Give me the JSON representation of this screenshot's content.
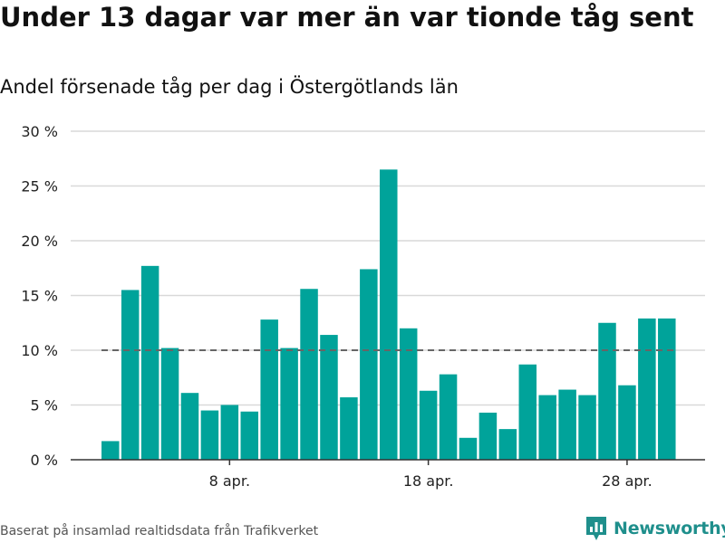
{
  "header": {
    "title": "Under 13 dagar var mer än var tionde tåg sent",
    "subtitle": "Andel försenade tåg per dag i Östergötlands län"
  },
  "footer": {
    "source": "Baserat på insamlad realtidsdata från Trafikverket",
    "brand": "Newsworthy",
    "brand_icon": "bar-chart-pin-logo-icon"
  },
  "colors": {
    "bar": "#00a39a",
    "grid": "#d9d9d9",
    "axis": "#333333",
    "reference_line": "#666666",
    "brand": "#1f8f8c"
  },
  "chart_data": {
    "type": "bar",
    "title": "Andel försenade tåg per dag i Östergötlands län",
    "xlabel": "",
    "ylabel": "",
    "x": [
      "2 apr.",
      "3 apr.",
      "4 apr.",
      "5 apr.",
      "6 apr.",
      "7 apr.",
      "8 apr.",
      "9 apr.",
      "10 apr.",
      "11 apr.",
      "12 apr.",
      "13 apr.",
      "14 apr.",
      "15 apr.",
      "16 apr.",
      "17 apr.",
      "18 apr.",
      "19 apr.",
      "20 apr.",
      "21 apr.",
      "22 apr.",
      "23 apr.",
      "24 apr.",
      "25 apr.",
      "26 apr.",
      "27 apr.",
      "28 apr.",
      "29 apr.",
      "30 apr."
    ],
    "values": [
      1.7,
      15.5,
      17.7,
      10.2,
      6.1,
      4.5,
      5.0,
      4.4,
      12.8,
      10.2,
      15.6,
      11.4,
      5.7,
      17.4,
      26.5,
      12.0,
      6.3,
      7.8,
      2.0,
      4.3,
      2.8,
      8.7,
      5.9,
      6.4,
      5.9,
      12.5,
      6.8,
      12.9,
      12.9
    ],
    "ylim": [
      0,
      30
    ],
    "yticks": [
      0,
      5,
      10,
      15,
      20,
      25,
      30
    ],
    "ytick_labels": [
      "0 %",
      "5 %",
      "10 %",
      "15 %",
      "20 %",
      "25 %",
      "30 %"
    ],
    "xtick_labels": [
      {
        "index": 6,
        "label": "8 apr."
      },
      {
        "index": 16,
        "label": "18 apr."
      },
      {
        "index": 26,
        "label": "28 apr."
      }
    ],
    "reference_line": {
      "value": 10,
      "style": "dashed"
    },
    "grid": true,
    "legend": "none"
  }
}
